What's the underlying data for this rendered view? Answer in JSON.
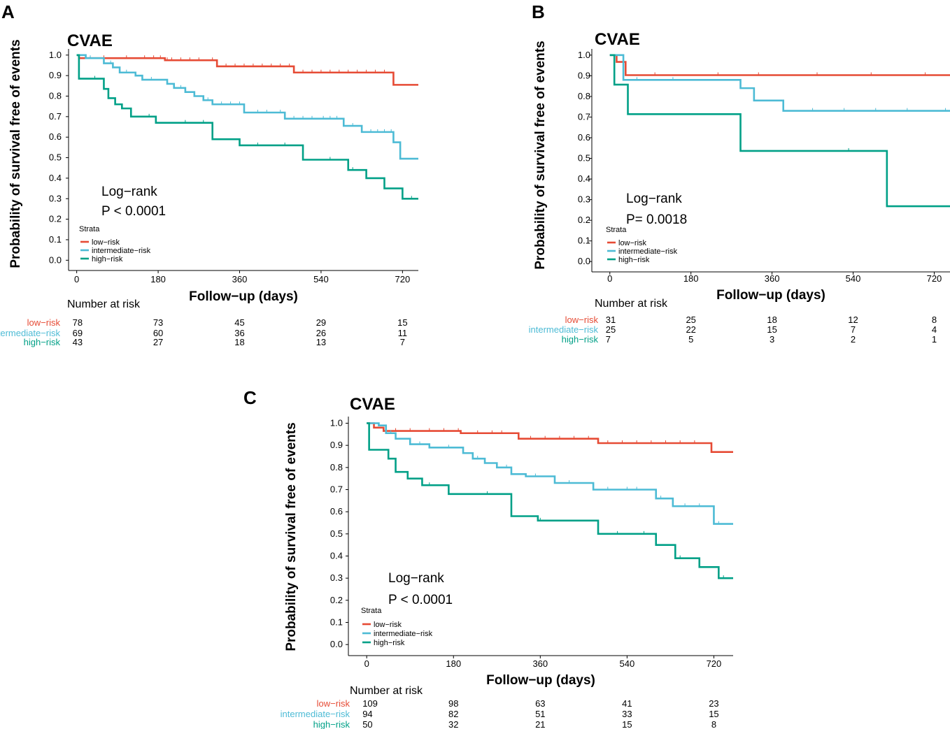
{
  "colors": {
    "low_risk": "#E64B35",
    "intermediate_risk": "#4DBBD5",
    "high_risk": "#00A087",
    "axis": "#000000"
  },
  "chart_data": [
    {
      "panel": "A",
      "type": "line",
      "subtype": "kaplan-meier",
      "title": "CVAE",
      "xlabel": "Follow−up (days)",
      "ylabel": "Probability of survival free of events",
      "xticks": [
        0,
        180,
        360,
        540,
        720
      ],
      "yticks": [
        0.0,
        0.1,
        0.2,
        0.3,
        0.4,
        0.5,
        0.6,
        0.7,
        0.8,
        0.9,
        1.0
      ],
      "xlim": [
        -18,
        755
      ],
      "ylim": [
        -0.05,
        1.03
      ],
      "annotation": [
        "Log−rank",
        "P < 0.0001"
      ],
      "legend_title": "Strata",
      "legend_position": "bottom-left",
      "series": [
        {
          "name": "low−risk",
          "color_key": "low_risk",
          "steps": [
            [
              0,
              1.0
            ],
            [
              5,
              0.985
            ],
            [
              195,
              0.975
            ],
            [
              310,
              0.945
            ],
            [
              480,
              0.915
            ],
            [
              700,
              0.855
            ],
            [
              755,
              0.855
            ]
          ],
          "censor": [
            20,
            60,
            110,
            150,
            170,
            185,
            200,
            210,
            230,
            250,
            270,
            300,
            330,
            350,
            370,
            390,
            410,
            430,
            450,
            470,
            500,
            520,
            540,
            560,
            580,
            600,
            620,
            640,
            660,
            680
          ]
        },
        {
          "name": "intermediate−risk",
          "color_key": "intermediate_risk",
          "steps": [
            [
              0,
              1.0
            ],
            [
              20,
              0.985
            ],
            [
              60,
              0.96
            ],
            [
              80,
              0.94
            ],
            [
              95,
              0.915
            ],
            [
              130,
              0.9
            ],
            [
              145,
              0.88
            ],
            [
              200,
              0.86
            ],
            [
              215,
              0.84
            ],
            [
              240,
              0.82
            ],
            [
              260,
              0.8
            ],
            [
              280,
              0.78
            ],
            [
              300,
              0.76
            ],
            [
              370,
              0.72
            ],
            [
              460,
              0.69
            ],
            [
              590,
              0.655
            ],
            [
              630,
              0.625
            ],
            [
              700,
              0.575
            ],
            [
              715,
              0.495
            ],
            [
              755,
              0.495
            ]
          ],
          "censor": [
            30,
            75,
            110,
            165,
            230,
            290,
            320,
            340,
            360,
            400,
            420,
            450,
            480,
            500,
            520,
            545,
            560,
            575,
            610,
            650,
            665,
            680,
            695
          ]
        },
        {
          "name": "high−risk",
          "color_key": "high_risk",
          "steps": [
            [
              0,
              1.0
            ],
            [
              5,
              0.885
            ],
            [
              60,
              0.835
            ],
            [
              70,
              0.79
            ],
            [
              85,
              0.76
            ],
            [
              100,
              0.74
            ],
            [
              120,
              0.7
            ],
            [
              175,
              0.67
            ],
            [
              300,
              0.59
            ],
            [
              360,
              0.56
            ],
            [
              500,
              0.49
            ],
            [
              600,
              0.44
            ],
            [
              640,
              0.4
            ],
            [
              680,
              0.35
            ],
            [
              720,
              0.3
            ],
            [
              755,
              0.3
            ]
          ],
          "censor": [
            40,
            160,
            240,
            280,
            400,
            460,
            560,
            610,
            740
          ]
        }
      ],
      "risk_table": {
        "header": "Number at risk",
        "rows": [
          {
            "label": "low−risk",
            "color_key": "low_risk",
            "values": [
              "78",
              "73",
              "45",
              "29",
              "15"
            ]
          },
          {
            "label": "intermediate−risk",
            "color_key": "intermediate_risk",
            "values": [
              "69",
              "60",
              "36",
              "26",
              "11"
            ]
          },
          {
            "label": "high−risk",
            "color_key": "high_risk",
            "values": [
              "43",
              "27",
              "18",
              "13",
              "7"
            ]
          }
        ]
      }
    },
    {
      "panel": "B",
      "type": "line",
      "subtype": "kaplan-meier",
      "title": "CVAE",
      "xlabel": "Follow−up (days)",
      "ylabel": "Probability of survival free of events",
      "xticks": [
        0,
        180,
        360,
        540,
        720
      ],
      "yticks": [
        0.0,
        0.1,
        0.2,
        0.3,
        0.4,
        0.5,
        0.6,
        0.7,
        0.8,
        0.9,
        1.0
      ],
      "xlim": [
        -40,
        755
      ],
      "ylim": [
        -0.05,
        1.03
      ],
      "annotation": [
        "Log−rank",
        "P= 0.0018"
      ],
      "legend_title": "Strata",
      "legend_position": "bottom-left",
      "series": [
        {
          "name": "low−risk",
          "color_key": "low_risk",
          "steps": [
            [
              0,
              1.0
            ],
            [
              15,
              0.967
            ],
            [
              35,
              0.903
            ],
            [
              755,
              0.903
            ]
          ],
          "censor": [
            100,
            240,
            330,
            460,
            580,
            700
          ]
        },
        {
          "name": "intermediate−risk",
          "color_key": "intermediate_risk",
          "steps": [
            [
              0,
              1.0
            ],
            [
              30,
              0.88
            ],
            [
              290,
              0.84
            ],
            [
              320,
              0.78
            ],
            [
              385,
              0.73
            ],
            [
              755,
              0.73
            ]
          ],
          "censor": [
            60,
            140,
            450,
            520,
            590,
            660,
            745
          ]
        },
        {
          "name": "high−risk",
          "color_key": "high_risk",
          "steps": [
            [
              0,
              1.0
            ],
            [
              10,
              0.857
            ],
            [
              40,
              0.714
            ],
            [
              290,
              0.536
            ],
            [
              615,
              0.268
            ],
            [
              755,
              0.268
            ]
          ],
          "censor": [
            290,
            530
          ]
        }
      ],
      "risk_table": {
        "header": "Number at risk",
        "rows": [
          {
            "label": "low−risk",
            "color_key": "low_risk",
            "values": [
              "31",
              "25",
              "18",
              "12",
              "8"
            ]
          },
          {
            "label": "intermediate−risk",
            "color_key": "intermediate_risk",
            "values": [
              "25",
              "22",
              "15",
              "7",
              "4"
            ]
          },
          {
            "label": "high−risk",
            "color_key": "high_risk",
            "values": [
              "7",
              "5",
              "3",
              "2",
              "1"
            ]
          }
        ]
      }
    },
    {
      "panel": "C",
      "type": "line",
      "subtype": "kaplan-meier",
      "title": "CVAE",
      "xlabel": "Follow−up (days)",
      "ylabel": "Probability of survival free of events",
      "xticks": [
        0,
        180,
        360,
        540,
        720
      ],
      "yticks": [
        0.0,
        0.1,
        0.2,
        0.3,
        0.4,
        0.5,
        0.6,
        0.7,
        0.8,
        0.9,
        1.0
      ],
      "xlim": [
        -38,
        760
      ],
      "ylim": [
        -0.05,
        1.03
      ],
      "annotation": [
        "Log−rank",
        "P < 0.0001"
      ],
      "legend_title": "Strata",
      "legend_position": "bottom-left",
      "series": [
        {
          "name": "low−risk",
          "color_key": "low_risk",
          "steps": [
            [
              0,
              1.0
            ],
            [
              15,
              0.98
            ],
            [
              35,
              0.965
            ],
            [
              195,
              0.955
            ],
            [
              315,
              0.93
            ],
            [
              480,
              0.91
            ],
            [
              715,
              0.87
            ],
            [
              760,
              0.87
            ]
          ],
          "censor": [
            60,
            90,
            130,
            160,
            190,
            230,
            260,
            280,
            340,
            370,
            400,
            430,
            460,
            500,
            530,
            560,
            590,
            620,
            650,
            680
          ]
        },
        {
          "name": "intermediate−risk",
          "color_key": "intermediate_risk",
          "steps": [
            [
              0,
              1.0
            ],
            [
              25,
              0.99
            ],
            [
              40,
              0.955
            ],
            [
              60,
              0.93
            ],
            [
              90,
              0.905
            ],
            [
              130,
              0.89
            ],
            [
              200,
              0.865
            ],
            [
              220,
              0.84
            ],
            [
              245,
              0.82
            ],
            [
              270,
              0.8
            ],
            [
              300,
              0.77
            ],
            [
              330,
              0.76
            ],
            [
              390,
              0.73
            ],
            [
              470,
              0.7
            ],
            [
              600,
              0.66
            ],
            [
              635,
              0.625
            ],
            [
              720,
              0.545
            ],
            [
              760,
              0.545
            ]
          ],
          "censor": [
            50,
            110,
            170,
            230,
            290,
            350,
            420,
            500,
            540,
            560,
            610,
            660,
            690,
            730
          ]
        },
        {
          "name": "high−risk",
          "color_key": "high_risk",
          "steps": [
            [
              0,
              1.0
            ],
            [
              5,
              0.88
            ],
            [
              45,
              0.84
            ],
            [
              60,
              0.78
            ],
            [
              85,
              0.75
            ],
            [
              115,
              0.72
            ],
            [
              170,
              0.68
            ],
            [
              300,
              0.58
            ],
            [
              355,
              0.56
            ],
            [
              480,
              0.5
            ],
            [
              600,
              0.45
            ],
            [
              640,
              0.39
            ],
            [
              690,
              0.35
            ],
            [
              730,
              0.3
            ],
            [
              760,
              0.3
            ]
          ],
          "censor": [
            130,
            250,
            360,
            520,
            575,
            650,
            740
          ]
        }
      ],
      "risk_table": {
        "header": "Number at risk",
        "rows": [
          {
            "label": "low−risk",
            "color_key": "low_risk",
            "values": [
              "109",
              "98",
              "63",
              "41",
              "23"
            ]
          },
          {
            "label": "intermediate−risk",
            "color_key": "intermediate_risk",
            "values": [
              "94",
              "82",
              "51",
              "33",
              "15"
            ]
          },
          {
            "label": "high−risk",
            "color_key": "high_risk",
            "values": [
              "50",
              "32",
              "21",
              "15",
              "8"
            ]
          }
        ]
      }
    }
  ]
}
